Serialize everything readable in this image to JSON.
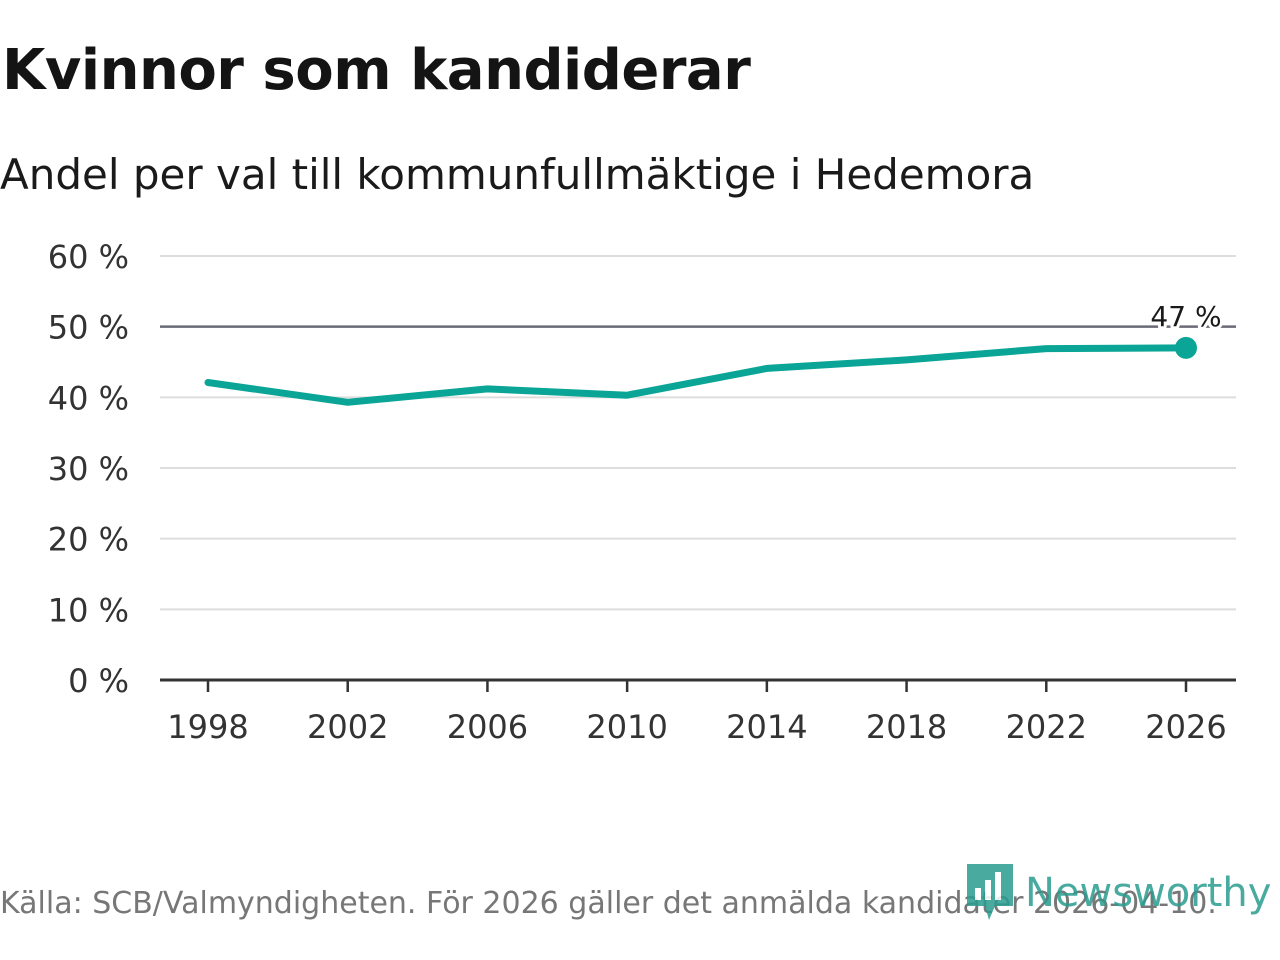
{
  "title": "Kvinnor som kandiderar",
  "subtitle": "Andel per val till kommunfullmäktige i Hedemora",
  "source": "Källa: SCB/Valmyndigheten. För 2026 gäller det anmälda kandidater 2026-04-10.",
  "brand": {
    "name": "Newsworthy",
    "icon": "newsworthy-logo-icon"
  },
  "colors": {
    "series": "#0aa596",
    "grid": "#dddddd",
    "reference": "#6b6b78",
    "axis": "#333333"
  },
  "chart_data": {
    "type": "line",
    "title": "Kvinnor som kandiderar",
    "subtitle": "Andel per val till kommunfullmäktige i Hedemora",
    "xlabel": "",
    "ylabel": "",
    "x": [
      1998,
      2002,
      2006,
      2010,
      2014,
      2018,
      2022,
      2026
    ],
    "xticks": [
      "1998",
      "2002",
      "2006",
      "2010",
      "2014",
      "2018",
      "2022",
      "2026"
    ],
    "yticks": [
      0,
      10,
      20,
      30,
      40,
      50,
      60
    ],
    "ytick_labels": [
      "0 %",
      "10 %",
      "20 %",
      "30 %",
      "40 %",
      "50 %",
      "60 %"
    ],
    "ylim": [
      0,
      60
    ],
    "grid": true,
    "reference_line": 50,
    "series": [
      {
        "name": "Kvinnor",
        "values": [
          42.1,
          39.3,
          41.2,
          40.3,
          44.1,
          45.3,
          46.9,
          47.0
        ]
      }
    ],
    "end_label": "47 %"
  }
}
